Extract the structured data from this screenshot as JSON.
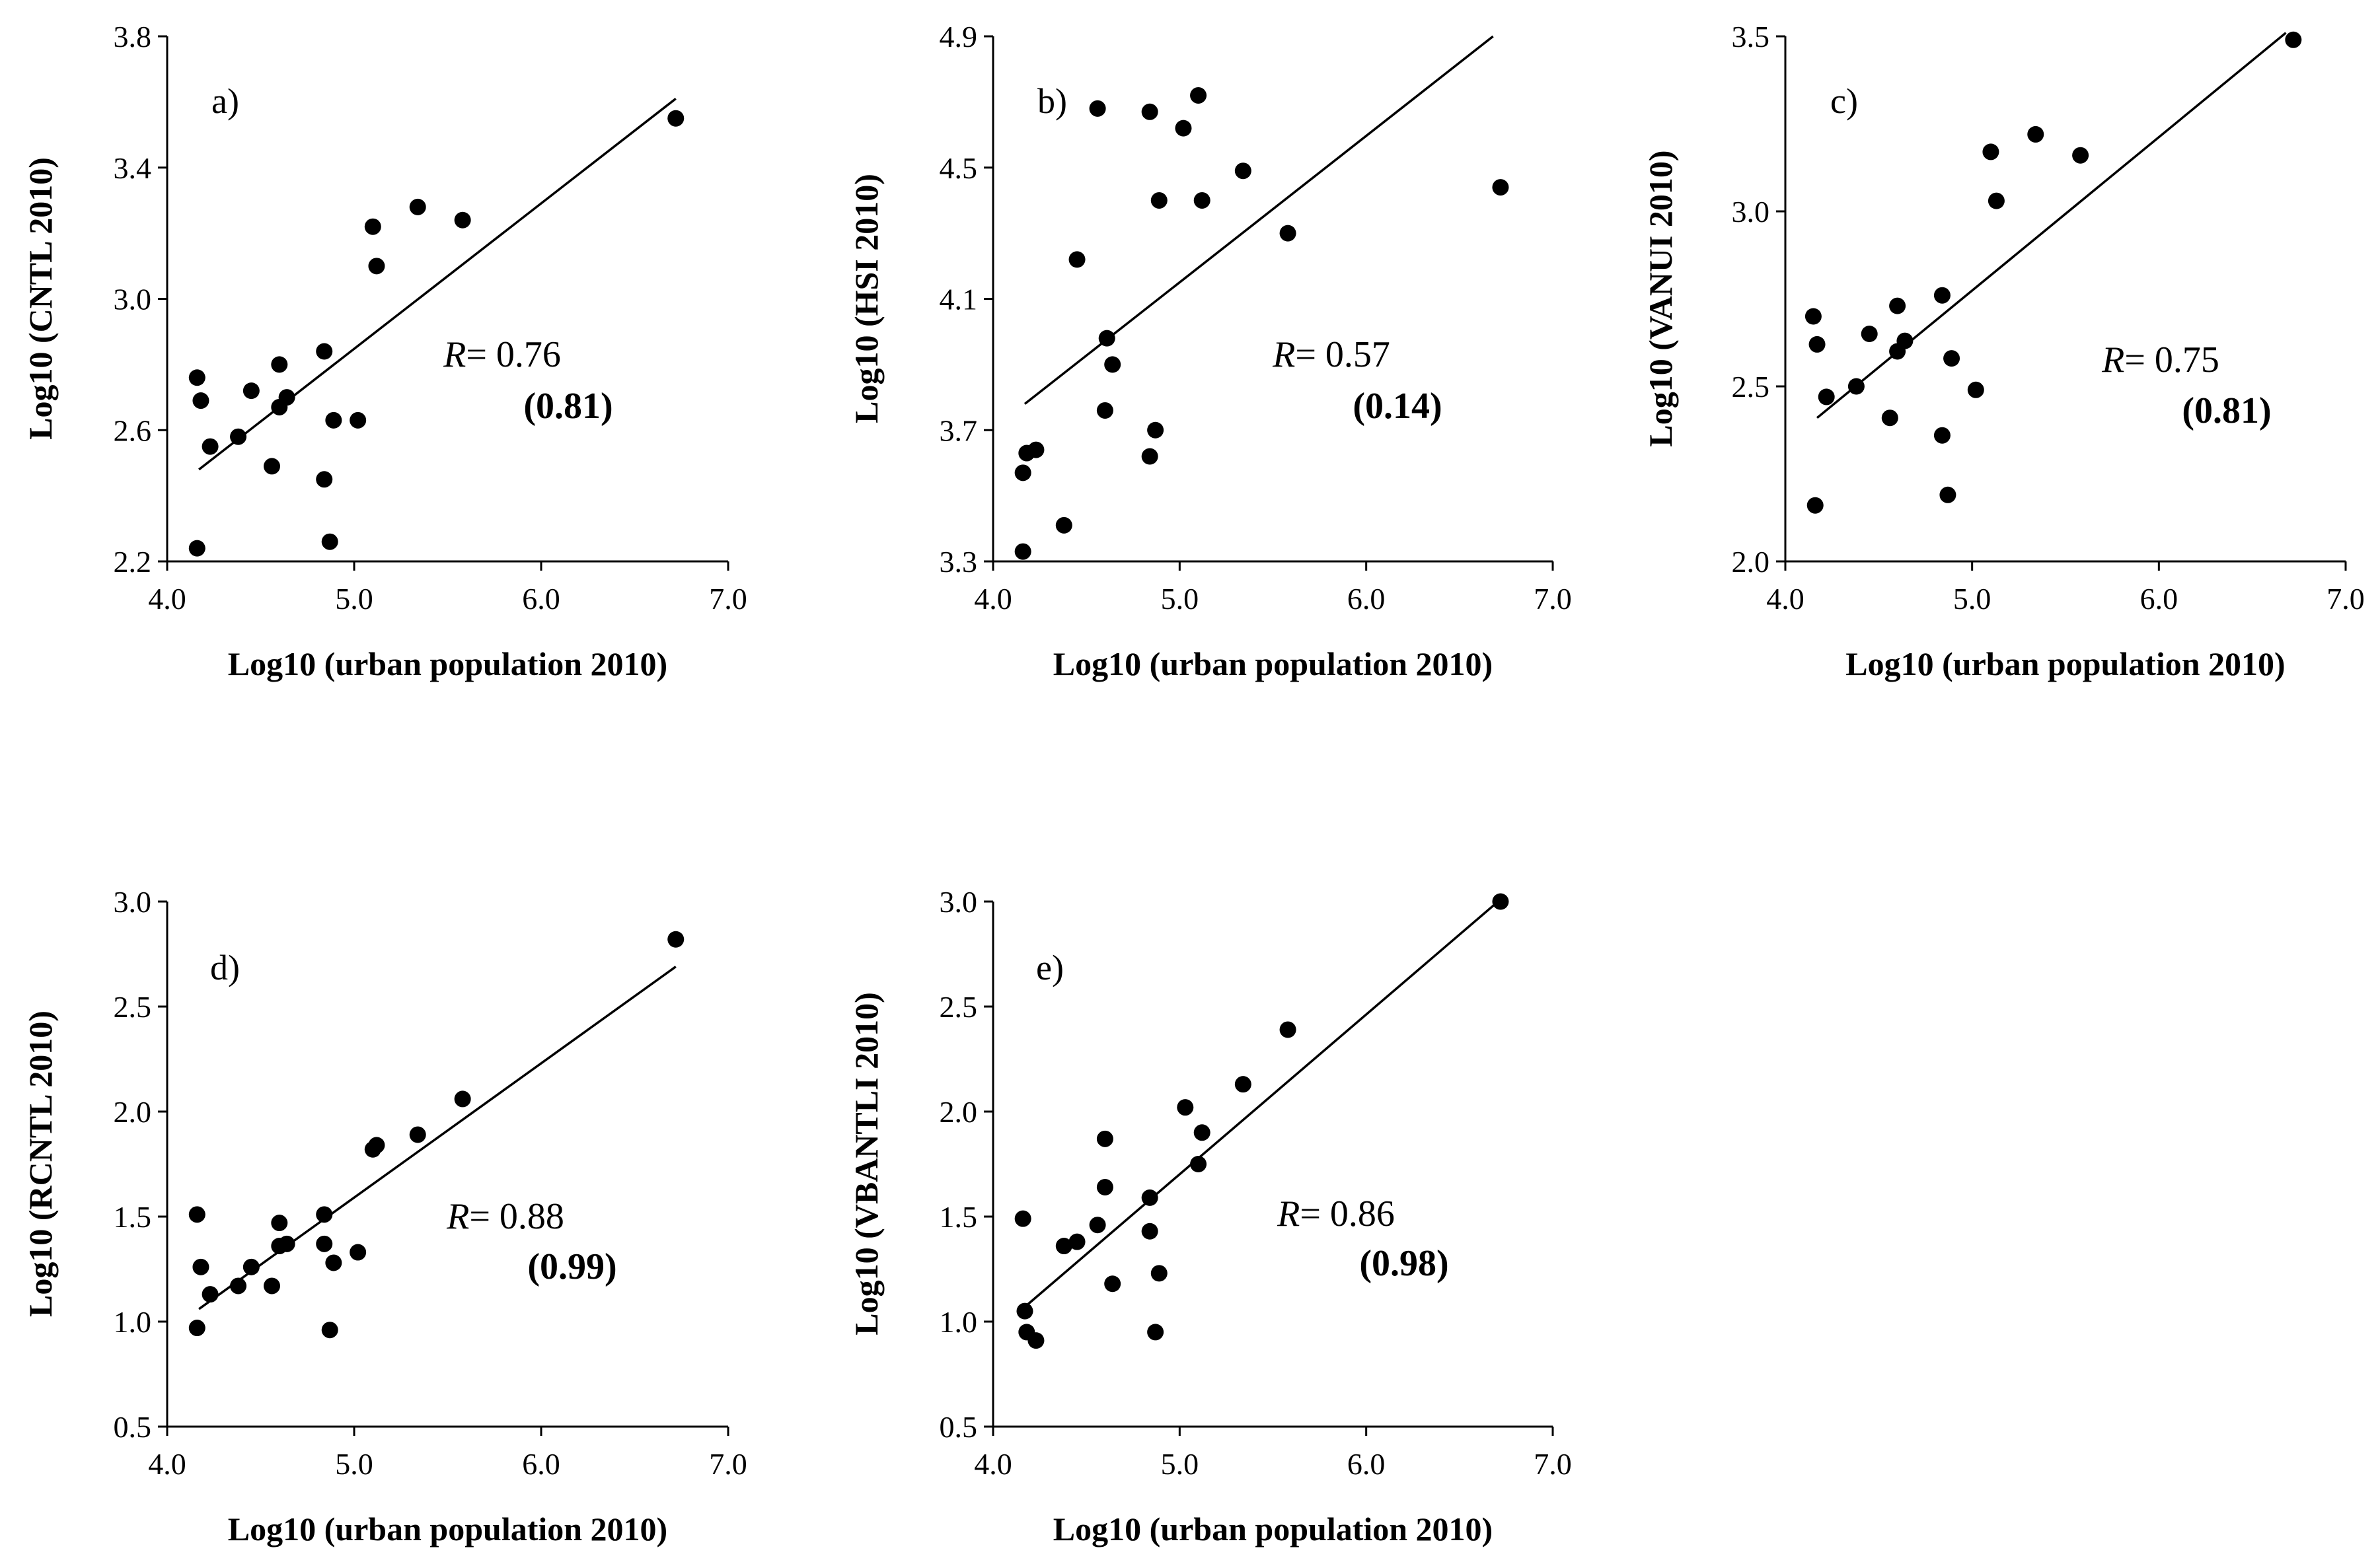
{
  "chart_data": [
    {
      "type": "scatter",
      "panel_label": "a)",
      "xlabel": "Log10 (urban population 2010)",
      "ylabel": "Log10 (CNTL 2010)",
      "xlim": [
        4.0,
        7.0
      ],
      "ylim": [
        2.2,
        3.8
      ],
      "xticks": [
        "4.0",
        "5.0",
        "6.0",
        "7.0"
      ],
      "yticks": [
        "2.2",
        "2.6",
        "3.0",
        "3.4",
        "3.8"
      ],
      "r_label": "R",
      "r_value": "= 0.76",
      "r_paren": "(0.81)",
      "fit_line": {
        "x": [
          4.17,
          6.72
        ],
        "y": [
          2.48,
          3.61
        ]
      },
      "points": [
        {
          "x": 4.16,
          "y": 2.76
        },
        {
          "x": 4.18,
          "y": 2.69
        },
        {
          "x": 4.16,
          "y": 2.24
        },
        {
          "x": 4.23,
          "y": 2.55
        },
        {
          "x": 4.38,
          "y": 2.58
        },
        {
          "x": 4.45,
          "y": 2.72
        },
        {
          "x": 4.56,
          "y": 2.49
        },
        {
          "x": 4.6,
          "y": 2.8
        },
        {
          "x": 4.6,
          "y": 2.67
        },
        {
          "x": 4.64,
          "y": 2.7
        },
        {
          "x": 4.84,
          "y": 2.84
        },
        {
          "x": 4.84,
          "y": 2.45
        },
        {
          "x": 4.87,
          "y": 2.26
        },
        {
          "x": 4.89,
          "y": 2.63
        },
        {
          "x": 5.02,
          "y": 2.63
        },
        {
          "x": 5.1,
          "y": 3.22
        },
        {
          "x": 5.12,
          "y": 3.1
        },
        {
          "x": 5.34,
          "y": 3.28
        },
        {
          "x": 5.58,
          "y": 3.24
        },
        {
          "x": 6.72,
          "y": 3.55
        }
      ]
    },
    {
      "type": "scatter",
      "panel_label": "b)",
      "xlabel": "Log10 (urban population 2010)",
      "ylabel": "Log10 (HSI 2010)",
      "xlim": [
        4.0,
        7.0
      ],
      "ylim": [
        3.3,
        4.9
      ],
      "xticks": [
        "4.0",
        "5.0",
        "6.0",
        "7.0"
      ],
      "yticks": [
        "3.3",
        "3.7",
        "4.1",
        "4.5",
        "4.9"
      ],
      "r_label": "R",
      "r_value": "= 0.57",
      "r_paren": "(0.14)",
      "fit_line": {
        "x": [
          4.17,
          6.68
        ],
        "y": [
          3.78,
          4.9
        ]
      },
      "points": [
        {
          "x": 4.16,
          "y": 3.57
        },
        {
          "x": 4.18,
          "y": 3.63
        },
        {
          "x": 4.16,
          "y": 3.33
        },
        {
          "x": 4.23,
          "y": 3.64
        },
        {
          "x": 4.38,
          "y": 3.41
        },
        {
          "x": 4.45,
          "y": 4.22
        },
        {
          "x": 4.56,
          "y": 4.68
        },
        {
          "x": 4.6,
          "y": 3.76
        },
        {
          "x": 4.61,
          "y": 3.98
        },
        {
          "x": 4.64,
          "y": 3.9
        },
        {
          "x": 4.84,
          "y": 4.67
        },
        {
          "x": 4.84,
          "y": 3.62
        },
        {
          "x": 4.87,
          "y": 3.7
        },
        {
          "x": 4.89,
          "y": 4.4
        },
        {
          "x": 5.02,
          "y": 4.62
        },
        {
          "x": 5.1,
          "y": 4.72
        },
        {
          "x": 5.12,
          "y": 4.4
        },
        {
          "x": 5.34,
          "y": 4.49
        },
        {
          "x": 5.58,
          "y": 4.3
        },
        {
          "x": 6.72,
          "y": 4.44
        }
      ]
    },
    {
      "type": "scatter",
      "panel_label": "c)",
      "xlabel": "Log10 (urban population 2010)",
      "ylabel": "Log10 (VANUI 2010)",
      "xlim": [
        4.0,
        7.0
      ],
      "ylim": [
        2.0,
        3.5
      ],
      "xticks": [
        "4.0",
        "5.0",
        "6.0",
        "7.0"
      ],
      "yticks": [
        "2.0",
        "2.5",
        "3.0",
        "3.5"
      ],
      "r_label": "R",
      "r_value": "= 0.75",
      "r_paren": "(0.81)",
      "fit_line": {
        "x": [
          4.17,
          6.68
        ],
        "y": [
          2.41,
          3.51
        ]
      },
      "points": [
        {
          "x": 4.15,
          "y": 2.7
        },
        {
          "x": 4.17,
          "y": 2.62
        },
        {
          "x": 4.16,
          "y": 2.16
        },
        {
          "x": 4.22,
          "y": 2.47
        },
        {
          "x": 4.38,
          "y": 2.5
        },
        {
          "x": 4.45,
          "y": 2.65
        },
        {
          "x": 4.56,
          "y": 2.41
        },
        {
          "x": 4.6,
          "y": 2.73
        },
        {
          "x": 4.6,
          "y": 2.6
        },
        {
          "x": 4.64,
          "y": 2.63
        },
        {
          "x": 4.84,
          "y": 2.76
        },
        {
          "x": 4.84,
          "y": 2.36
        },
        {
          "x": 4.87,
          "y": 2.19
        },
        {
          "x": 4.89,
          "y": 2.58
        },
        {
          "x": 5.02,
          "y": 2.49
        },
        {
          "x": 5.1,
          "y": 3.17
        },
        {
          "x": 5.13,
          "y": 3.03
        },
        {
          "x": 5.34,
          "y": 3.22
        },
        {
          "x": 5.58,
          "y": 3.16
        },
        {
          "x": 6.72,
          "y": 3.49
        }
      ]
    },
    {
      "type": "scatter",
      "panel_label": "d)",
      "xlabel": "Log10 (urban population 2010)",
      "ylabel": "Log10 (RCNTL 2010)",
      "xlim": [
        4.0,
        7.0
      ],
      "ylim": [
        0.5,
        3.0
      ],
      "xticks": [
        "4.0",
        "5.0",
        "6.0",
        "7.0"
      ],
      "yticks": [
        "0.5",
        "1.0",
        "1.5",
        "2.0",
        "2.5",
        "3.0"
      ],
      "r_label": "R",
      "r_value": "= 0.88",
      "r_paren": "(0.99)",
      "fit_line": {
        "x": [
          4.17,
          6.72
        ],
        "y": [
          1.06,
          2.69
        ]
      },
      "points": [
        {
          "x": 4.16,
          "y": 1.51
        },
        {
          "x": 4.18,
          "y": 1.26
        },
        {
          "x": 4.16,
          "y": 0.97
        },
        {
          "x": 4.23,
          "y": 1.13
        },
        {
          "x": 4.38,
          "y": 1.17
        },
        {
          "x": 4.45,
          "y": 1.26
        },
        {
          "x": 4.56,
          "y": 1.17
        },
        {
          "x": 4.6,
          "y": 1.47
        },
        {
          "x": 4.6,
          "y": 1.36
        },
        {
          "x": 4.64,
          "y": 1.37
        },
        {
          "x": 4.84,
          "y": 1.51
        },
        {
          "x": 4.84,
          "y": 1.37
        },
        {
          "x": 4.87,
          "y": 0.96
        },
        {
          "x": 4.89,
          "y": 1.28
        },
        {
          "x": 5.02,
          "y": 1.33
        },
        {
          "x": 5.1,
          "y": 1.82
        },
        {
          "x": 5.12,
          "y": 1.84
        },
        {
          "x": 5.34,
          "y": 1.89
        },
        {
          "x": 5.58,
          "y": 2.06
        },
        {
          "x": 6.72,
          "y": 2.82
        }
      ]
    },
    {
      "type": "scatter",
      "panel_label": "e)",
      "xlabel": "Log10 (urban population 2010)",
      "ylabel": "Log10 (VBANTLI 2010)",
      "xlim": [
        4.0,
        7.0
      ],
      "ylim": [
        0.5,
        3.0
      ],
      "xticks": [
        "4.0",
        "5.0",
        "6.0",
        "7.0"
      ],
      "yticks": [
        "0.5",
        "1.0",
        "1.5",
        "2.0",
        "2.5",
        "3.0"
      ],
      "r_label": "R",
      "r_value": "= 0.86",
      "r_paren": "(0.98)",
      "fit_line": {
        "x": [
          4.17,
          6.72
        ],
        "y": [
          1.07,
          3.01
        ]
      },
      "points": [
        {
          "x": 4.16,
          "y": 1.49
        },
        {
          "x": 4.17,
          "y": 1.05
        },
        {
          "x": 4.18,
          "y": 0.95
        },
        {
          "x": 4.23,
          "y": 0.91
        },
        {
          "x": 4.38,
          "y": 1.36
        },
        {
          "x": 4.45,
          "y": 1.38
        },
        {
          "x": 4.56,
          "y": 1.46
        },
        {
          "x": 4.6,
          "y": 1.87
        },
        {
          "x": 4.6,
          "y": 1.64
        },
        {
          "x": 4.64,
          "y": 1.18
        },
        {
          "x": 4.84,
          "y": 1.59
        },
        {
          "x": 4.84,
          "y": 1.43
        },
        {
          "x": 4.87,
          "y": 0.95
        },
        {
          "x": 4.89,
          "y": 1.23
        },
        {
          "x": 5.03,
          "y": 2.02
        },
        {
          "x": 5.1,
          "y": 1.75
        },
        {
          "x": 5.12,
          "y": 1.9
        },
        {
          "x": 5.34,
          "y": 2.13
        },
        {
          "x": 5.58,
          "y": 2.39
        },
        {
          "x": 6.72,
          "y": 3.0
        }
      ]
    }
  ]
}
